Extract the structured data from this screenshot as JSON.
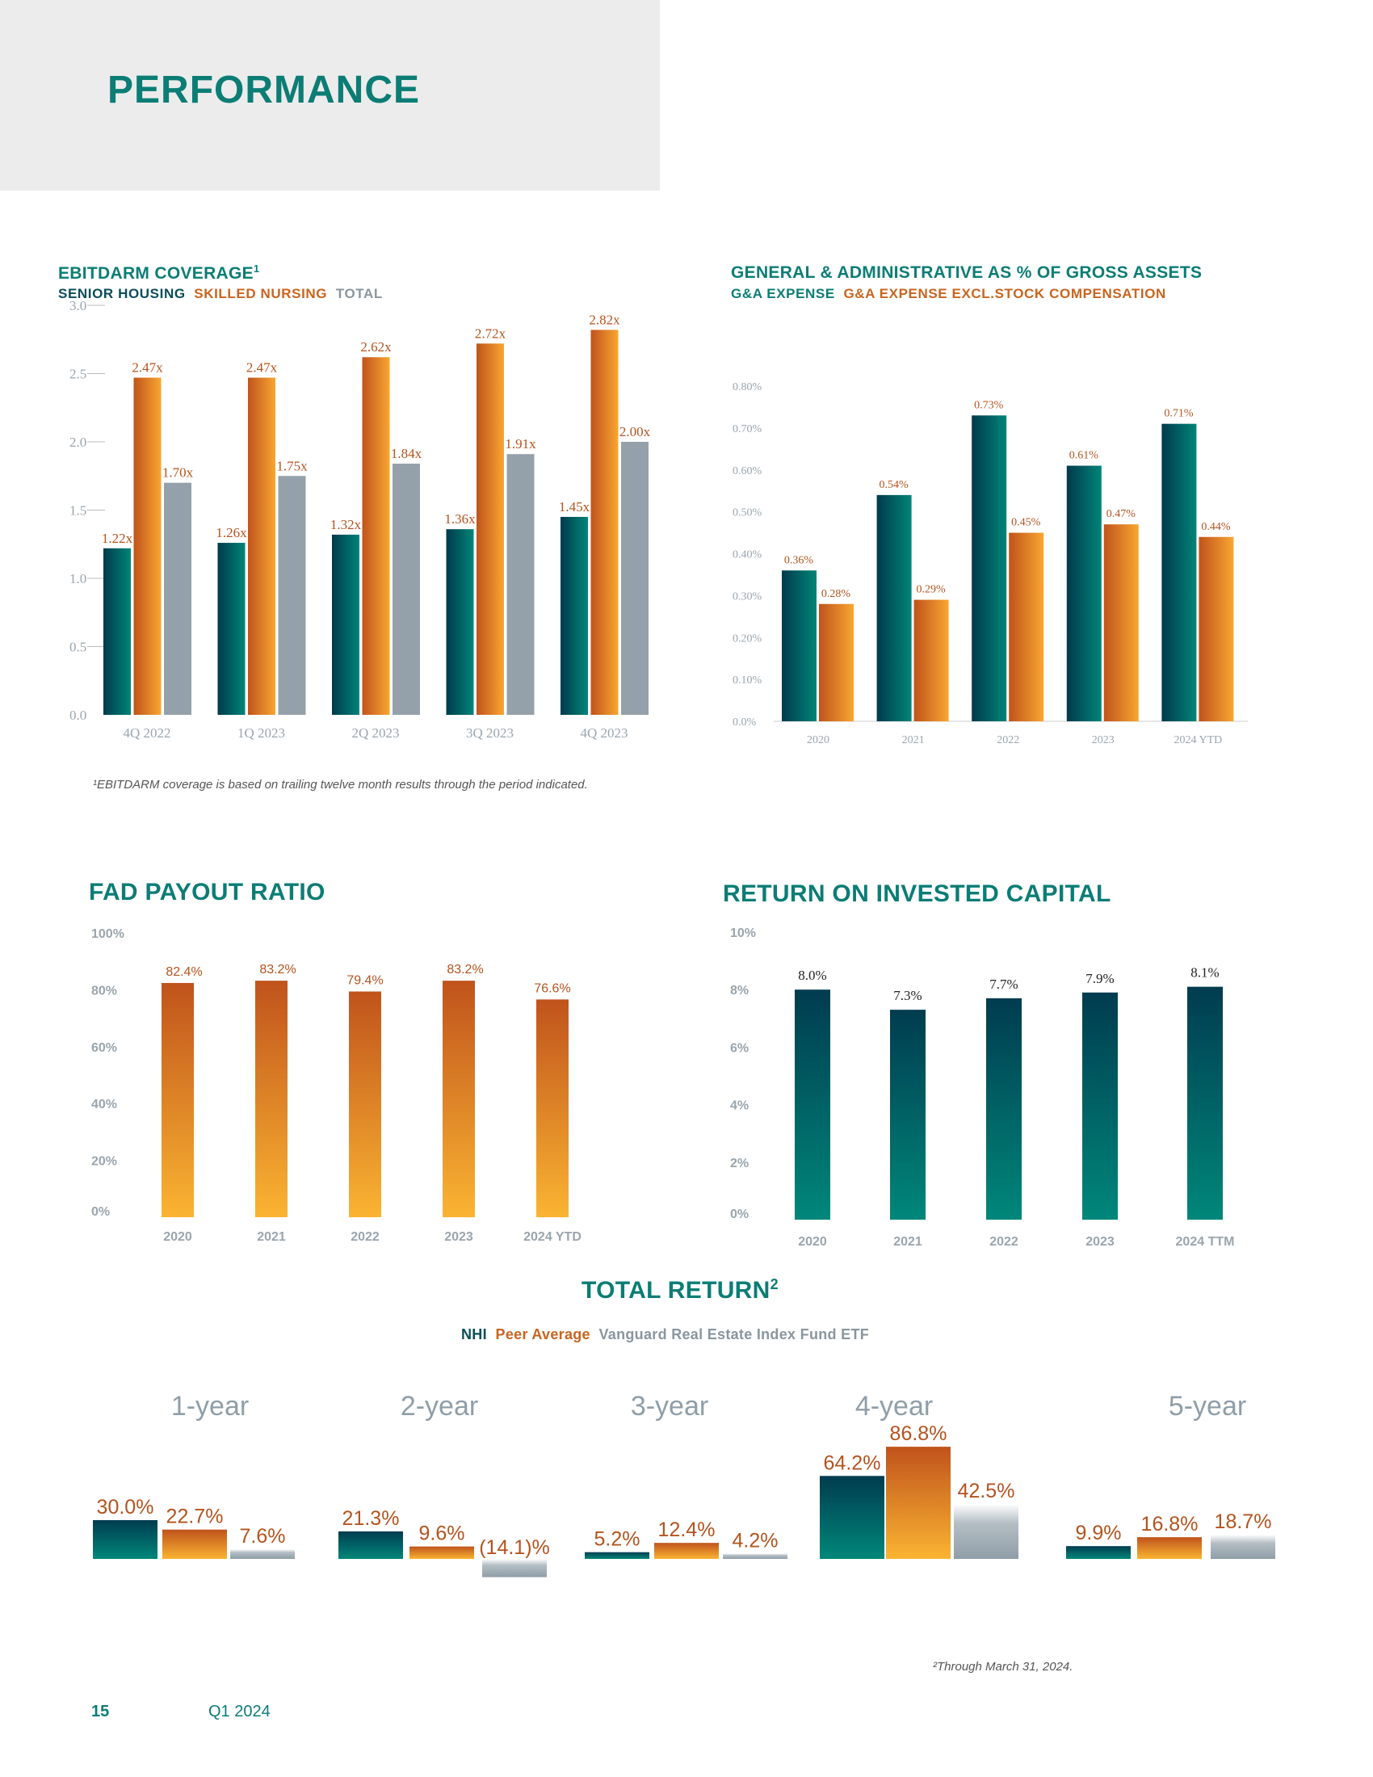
{
  "page": {
    "title": "PERFORMANCE",
    "page_number": "15",
    "period": "Q1 2024"
  },
  "colors": {
    "teal": "#0b7d75",
    "dark_teal": "#003a4d",
    "orange": "#c0531c",
    "light_orange": "#f9a630",
    "gray": "#8f9ea8",
    "label": "#b4531e"
  },
  "chart_data": [
    {
      "id": "ebitdarm",
      "type": "bar",
      "title": "EBITDARM COVERAGE",
      "title_sup": "1",
      "categories": [
        "4Q 2022",
        "1Q 2023",
        "2Q 2023",
        "3Q 2023",
        "4Q 2023"
      ],
      "series": [
        {
          "name": "SENIOR HOUSING",
          "values": [
            1.22,
            1.26,
            1.32,
            1.36,
            1.45
          ],
          "labels": [
            "1.22x",
            "1.26x",
            "1.32x",
            "1.36x",
            "1.45x"
          ]
        },
        {
          "name": "SKILLED NURSING",
          "values": [
            2.47,
            2.47,
            2.62,
            2.72,
            2.82
          ],
          "labels": [
            "2.47x",
            "2.47x",
            "2.62x",
            "2.72x",
            "2.82x"
          ]
        },
        {
          "name": "TOTAL",
          "values": [
            1.7,
            1.75,
            1.84,
            1.91,
            2.0
          ],
          "labels": [
            "1.70x",
            "1.75x",
            "1.84x",
            "1.91x",
            "2.00x"
          ]
        }
      ],
      "ylim": [
        0,
        3.0
      ],
      "yticks": [
        "0.0",
        "0.5",
        "1.0",
        "1.5",
        "2.0",
        "2.5",
        "3.0"
      ],
      "legend": "top-left",
      "footnote": "¹EBITDARM coverage is based on trailing twelve month results through the period indicated."
    },
    {
      "id": "ga",
      "type": "bar",
      "title": "GENERAL & ADMINISTRATIVE AS % OF GROSS ASSETS",
      "categories": [
        "2020",
        "2021",
        "2022",
        "2023",
        "2024 YTD"
      ],
      "series": [
        {
          "name": "G&A EXPENSE",
          "values": [
            0.36,
            0.54,
            0.73,
            0.61,
            0.71
          ],
          "labels": [
            "0.36%",
            "0.54%",
            "0.73%",
            "0.61%",
            "0.71%"
          ]
        },
        {
          "name": "G&A EXPENSE EXCL.STOCK COMPENSATION",
          "values": [
            0.28,
            0.29,
            0.45,
            0.47,
            0.44
          ],
          "labels": [
            "0.28%",
            "0.29%",
            "0.45%",
            "0.47%",
            "0.44%"
          ]
        }
      ],
      "ylim": [
        0,
        0.8
      ],
      "yticks": [
        "0.0%",
        "0.10%",
        "0.20%",
        "0.30%",
        "0.40%",
        "0.50%",
        "0.60%",
        "0.70%",
        "0.80%"
      ],
      "legend": "top-left"
    },
    {
      "id": "fad",
      "type": "bar",
      "title": "FAD PAYOUT RATIO",
      "categories": [
        "2020",
        "2021",
        "2022",
        "2023",
        "2024 YTD"
      ],
      "series": [
        {
          "values": [
            82.4,
            83.2,
            79.4,
            83.2,
            76.6
          ],
          "labels": [
            "82.4%",
            "83.2%",
            "79.4%",
            "83.2%",
            "76.6%"
          ]
        }
      ],
      "ylim": [
        0,
        100
      ],
      "yticks": [
        "0%",
        "20%",
        "40%",
        "60%",
        "80%",
        "100%"
      ]
    },
    {
      "id": "roic",
      "type": "bar",
      "title": "RETURN ON INVESTED CAPITAL",
      "categories": [
        "2020",
        "2021",
        "2022",
        "2023",
        "2024 TTM"
      ],
      "series": [
        {
          "values": [
            8.0,
            7.3,
            7.7,
            7.9,
            8.1
          ],
          "labels": [
            "8.0%",
            "7.3%",
            "7.7%",
            "7.9%",
            "8.1%"
          ]
        }
      ],
      "ylim": [
        0,
        10
      ],
      "yticks": [
        "0%",
        "2%",
        "4%",
        "6%",
        "8%",
        "10%"
      ]
    },
    {
      "id": "total_return",
      "type": "bar",
      "title": "TOTAL RETURN",
      "title_sup": "2",
      "categories": [
        "1-year",
        "2-year",
        "3-year",
        "4-year",
        "5-year"
      ],
      "series": [
        {
          "name": "NHI",
          "values": [
            30.0,
            21.3,
            5.2,
            64.2,
            9.9
          ],
          "labels": [
            "30.0%",
            "21.3%",
            "5.2%",
            "64.2%",
            "9.9%"
          ]
        },
        {
          "name": "Peer Average",
          "values": [
            22.7,
            9.6,
            12.4,
            86.8,
            16.8
          ],
          "labels": [
            "22.7%",
            "9.6%",
            "12.4%",
            "86.8%",
            "16.8%"
          ]
        },
        {
          "name": "Vanguard Real Estate Index Fund ETF",
          "values": [
            7.6,
            -14.1,
            4.2,
            42.5,
            18.7
          ],
          "labels": [
            "7.6%",
            "(14.1)%",
            "4.2%",
            "42.5%",
            "18.7%"
          ]
        }
      ],
      "legend": "top-center",
      "footnote": "²Through March 31, 2024."
    }
  ]
}
